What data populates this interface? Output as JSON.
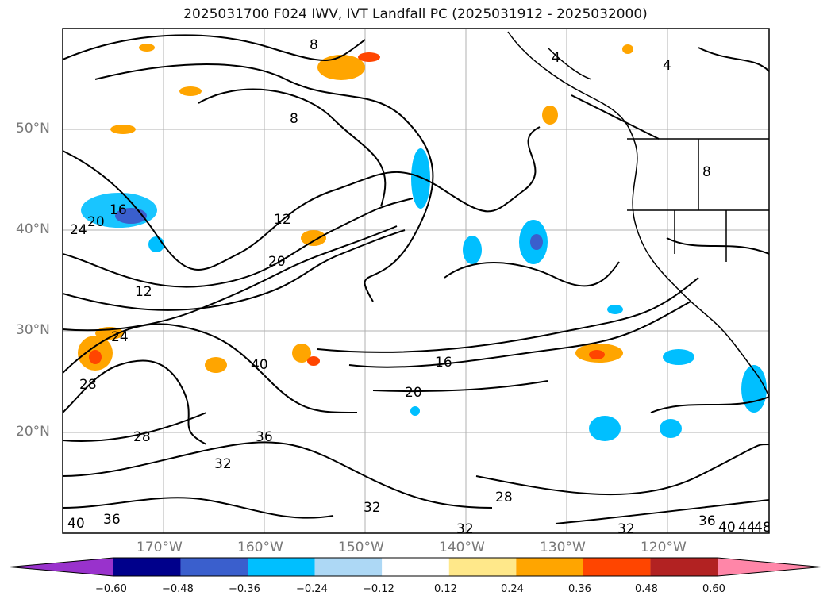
{
  "title": "2025031700 F024 IWV, IVT Landfall PC (2025031912 - 2025032000)",
  "latitude_labels": [
    "50°N",
    "40°N",
    "30°N",
    "20°N"
  ],
  "longitude_labels": [
    "170°W",
    "160°W",
    "150°W",
    "140°W",
    "130°W",
    "120°W"
  ],
  "contour_labels": [
    "8",
    "4",
    "4",
    "8",
    "8",
    "12",
    "16",
    "20",
    "24",
    "12",
    "20",
    "24",
    "40",
    "16",
    "20",
    "28",
    "28",
    "36",
    "32",
    "36",
    "40",
    "32",
    "28",
    "32",
    "32",
    "36",
    "40",
    "44",
    "48"
  ],
  "colorbar": {
    "colors": [
      "#9932cc",
      "#00008b",
      "#3a5fcd",
      "#00bfff",
      "#add8f5",
      "#ffffff",
      "#ffe88a",
      "#ffa500",
      "#ff4500",
      "#b22222",
      "#ff86a8"
    ],
    "ticks": [
      "−0.60",
      "−0.48",
      "−0.36",
      "−0.24",
      "−0.12",
      "0.12",
      "0.24",
      "0.36",
      "0.48",
      "0.60"
    ]
  }
}
